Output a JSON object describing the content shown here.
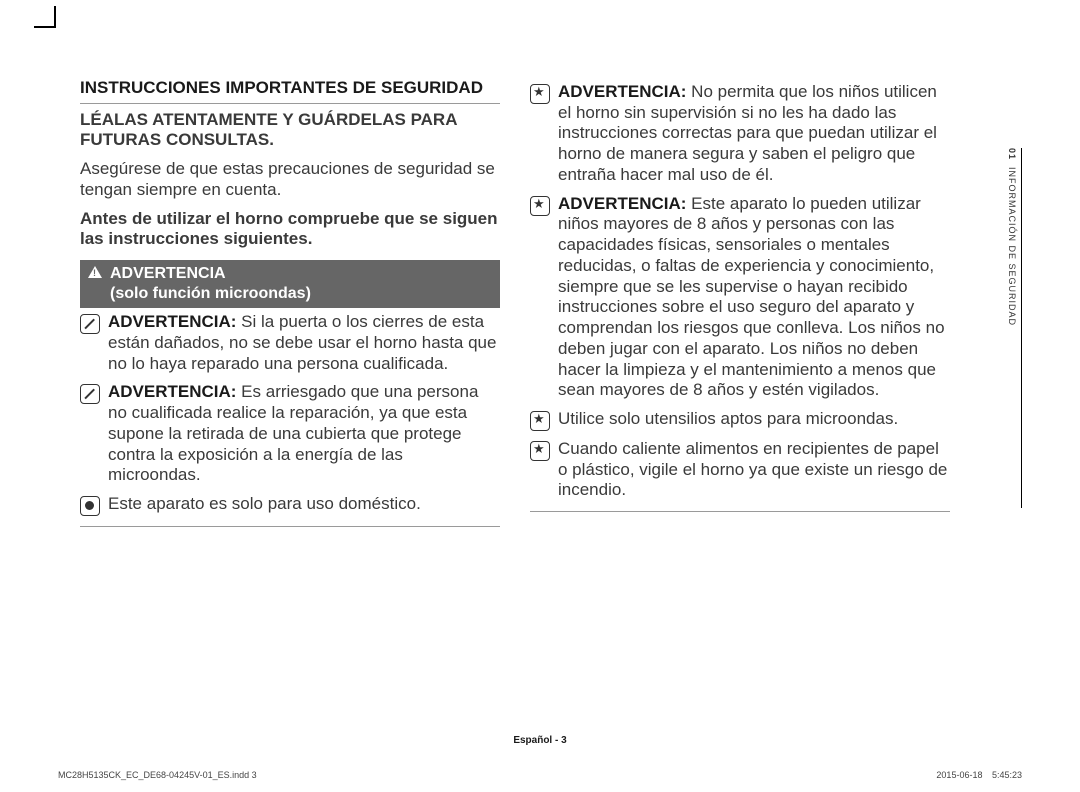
{
  "header": {
    "title": "INSTRUCCIONES IMPORTANTES DE SEGURIDAD",
    "subtitle": "LÉALAS ATENTAMENTE Y GUÁRDELAS PARA FUTURAS CONSULTAS.",
    "intro": "Asegúrese de que estas precauciones de seguridad se tengan siempre en cuenta.",
    "intro2": "Antes de utilizar el horno compruebe que se siguen las instrucciones siguientes."
  },
  "warnbar": {
    "title": "ADVERTENCIA",
    "subtitle": "(solo función microondas)"
  },
  "left_items": [
    {
      "icon": "slash",
      "bold": "ADVERTENCIA:",
      "text": " Si la puerta o los cierres de esta están dañados, no se debe usar el horno hasta que no lo haya reparado una persona cualificada."
    },
    {
      "icon": "slash",
      "bold": "ADVERTENCIA:",
      "text": " Es arriesgado que una persona no cualificada realice la reparación, ya que esta supone la retirada de una cubierta que protege contra la exposición a la energía de las microondas."
    },
    {
      "icon": "dot",
      "bold": "",
      "text": "Este aparato es solo para uso doméstico."
    }
  ],
  "right_items": [
    {
      "icon": "star",
      "bold": "ADVERTENCIA:",
      "text": " No permita que los niños utilicen el horno sin supervisión si no les ha dado las instrucciones correctas para que puedan utilizar el horno de manera segura y saben el peligro que entraña hacer mal uso de él."
    },
    {
      "icon": "star",
      "bold": "ADVERTENCIA:",
      "text": " Este aparato lo pueden utilizar niños mayores de 8 años y personas con las capacidades físicas, sensoriales o mentales reducidas, o faltas de experiencia y conocimiento, siempre que se les supervise o hayan recibido instrucciones sobre el uso seguro del aparato y comprendan los riesgos que conlleva. Los niños no deben jugar con el aparato. Los niños no deben hacer la limpieza y el mantenimiento a menos que sean mayores de 8 años y estén vigilados."
    },
    {
      "icon": "star",
      "bold": "",
      "text": "Utilice solo utensilios aptos para microondas."
    },
    {
      "icon": "star",
      "bold": "",
      "text": "Cuando caliente alimentos en recipientes de papel o plástico, vigile el horno ya que existe un riesgo de incendio."
    }
  ],
  "sidebar": {
    "num": "01",
    "label": "INFORMACIÓN DE SEGURIDAD"
  },
  "footer": {
    "center_lang": "Español",
    "center_page": "3",
    "left": "MC28H5135CK_EC_DE68-04245V-01_ES.indd   3",
    "right": "2015-06-18     5:45:23"
  },
  "colors": {
    "bar_bg": "#666666",
    "bar_fg": "#ffffff",
    "text": "#3a3a3a",
    "rule": "#9a9a9a"
  }
}
